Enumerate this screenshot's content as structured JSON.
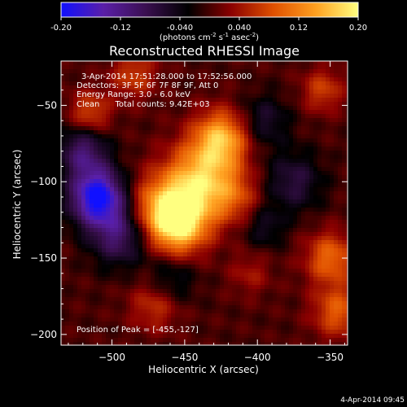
{
  "chart_data": {
    "type": "heatmap",
    "colorbar": {
      "ticks": [
        "-0.20",
        "-0.12",
        "-0.040",
        "0.040",
        "0.12",
        "0.20"
      ],
      "range": [
        -0.2,
        0.2
      ],
      "units_prefix": "(photons cm",
      "units_exp1": "-2",
      "units_mid": " s",
      "units_exp2": "-1",
      "units_mid2": " asec",
      "units_exp3": "-2",
      "units_suffix": ")",
      "colormap": [
        "#1010ff",
        "#5a1fa8",
        "#3a0f50",
        "#000000",
        "#8a0000",
        "#e05000",
        "#ffa020",
        "#ffff80"
      ]
    },
    "title": "Reconstructed RHESSI Image",
    "info_lines": [
      "3-Apr-2014 17:51:28.000 to 17:52:56.000",
      "Detectors: 3F 5F 6F 7F 8F 9F, Att 0",
      "Energy Range: 3.0 - 6.0 keV",
      "Clean      Total counts: 9.42E+03"
    ],
    "peak_label": "Position of Peak = [-455,-127]",
    "xlabel": "Heliocentric X (arcsec)",
    "ylabel": "Heliocentric Y (arcsec)",
    "xlim": [
      -535,
      -338
    ],
    "ylim": [
      -207,
      -21
    ],
    "xticks": [
      -500,
      -450,
      -400,
      -350
    ],
    "yticks": [
      -50,
      -100,
      -150,
      -200
    ],
    "sources": [
      {
        "x": -455,
        "y": -127,
        "amp": 0.2,
        "sigma": 14
      },
      {
        "x": -440,
        "y": -100,
        "amp": 0.16,
        "sigma": 17
      },
      {
        "x": -425,
        "y": -72,
        "amp": 0.15,
        "sigma": 13
      },
      {
        "x": -470,
        "y": -115,
        "amp": 0.08,
        "sigma": 14
      },
      {
        "x": -415,
        "y": -110,
        "amp": 0.06,
        "sigma": 12
      },
      {
        "x": -515,
        "y": -55,
        "amp": 0.08,
        "sigma": 10
      },
      {
        "x": -485,
        "y": -30,
        "amp": 0.07,
        "sigma": 11
      },
      {
        "x": -470,
        "y": -180,
        "amp": 0.07,
        "sigma": 12
      },
      {
        "x": -350,
        "y": -150,
        "amp": 0.1,
        "sigma": 12
      },
      {
        "x": -345,
        "y": -185,
        "amp": 0.09,
        "sigma": 12
      },
      {
        "x": -355,
        "y": -40,
        "amp": 0.07,
        "sigma": 10
      },
      {
        "x": -405,
        "y": -160,
        "amp": 0.04,
        "sigma": 10
      },
      {
        "x": -510,
        "y": -110,
        "amp": -0.2,
        "sigma": 13
      },
      {
        "x": -495,
        "y": -135,
        "amp": -0.1,
        "sigma": 14
      },
      {
        "x": -520,
        "y": -80,
        "amp": -0.1,
        "sigma": 12
      },
      {
        "x": -375,
        "y": -100,
        "amp": -0.07,
        "sigma": 14
      },
      {
        "x": -395,
        "y": -60,
        "amp": -0.06,
        "sigma": 12
      },
      {
        "x": -460,
        "y": -165,
        "amp": -0.06,
        "sigma": 12
      },
      {
        "x": -395,
        "y": -130,
        "amp": -0.05,
        "sigma": 10
      }
    ]
  },
  "footer": {
    "date": "4-Apr-2014 09:45"
  }
}
